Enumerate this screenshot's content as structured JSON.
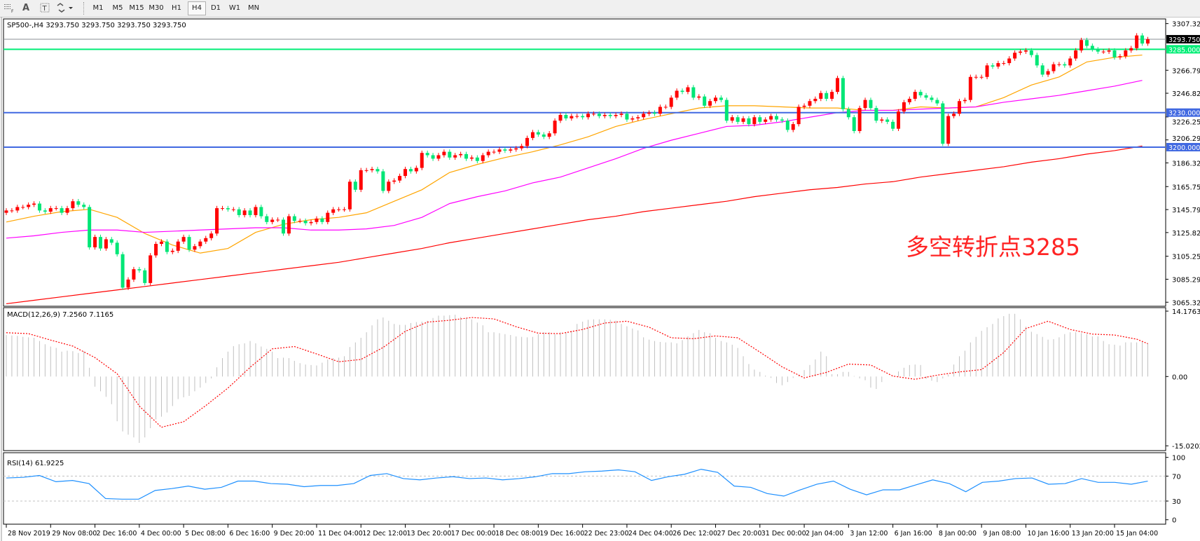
{
  "toolbar": {
    "icons": [
      "grid-icon",
      "text-icon",
      "text-label-icon",
      "shapes-icon"
    ],
    "text_tool_label": "A",
    "timeframes": [
      "M1",
      "M5",
      "M15",
      "M30",
      "H1",
      "H4",
      "D1",
      "W1",
      "MN"
    ],
    "active_timeframe": "H4"
  },
  "chart_header": "SP500-,H4  3293.750 3293.750 3293.750 3293.750",
  "macd_header": "MACD(12,26,9) 7.2560 7.1165",
  "rsi_header": "RSI(14) 61.9225",
  "annotation": "多空转折点3285",
  "colors": {
    "up": "#ff0000",
    "down": "#00e676",
    "ma_fast": "#ffa500",
    "ma_mid": "#ff00ff",
    "ma_slow": "#ff0000",
    "level_green": "#00ee76",
    "level_blue": "#4169e1",
    "rsi": "#1e90ff",
    "macd_hist": "#c0c0c0",
    "macd_signal": "#ff0000",
    "annotation": "#ff2424"
  },
  "chart_data": [
    {
      "type": "candlestick",
      "symbol": "SP500-",
      "timeframe": "H4",
      "ylim": [
        3065.325,
        3307.325
      ],
      "price_ticks": [
        "3307.325",
        "3266.790",
        "3246.825",
        "3226.255",
        "3206.290",
        "3186.325",
        "3165.755",
        "3145.790",
        "3125.825",
        "3105.255",
        "3085.290",
        "3065.325"
      ],
      "x_tick_labels": [
        "28 Nov 2019",
        "29 Nov 08:00",
        "2 Dec 16:00",
        "4 Dec 00:00",
        "5 Dec 08:00",
        "6 Dec 16:00",
        "9 Dec 20:00",
        "11 Dec 04:00",
        "12 Dec 12:00",
        "13 Dec 20:00",
        "17 Dec 00:00",
        "18 Dec 08:00",
        "19 Dec 16:00",
        "22 Dec 23:00",
        "24 Dec 04:00",
        "26 Dec 12:00",
        "27 Dec 20:00",
        "31 Dec 00:00",
        "2 Jan 04:00",
        "3 Jan 12:00",
        "6 Jan 16:00",
        "8 Jan 00:00",
        "9 Jan 08:00",
        "10 Jan 16:00",
        "13 Jan 20:00",
        "15 Jan 04:00"
      ],
      "first_open": 3143,
      "closes": [
        3145,
        3145,
        3148,
        3148,
        3150,
        3151,
        3145,
        3144,
        3147,
        3147,
        3143,
        3147,
        3153,
        3150,
        3148,
        3113,
        3122,
        3112,
        3120,
        3117,
        3107,
        3078,
        3085,
        3094,
        3093,
        3082,
        3106,
        3116,
        3118,
        3109,
        3110,
        3118,
        3122,
        3111,
        3114,
        3118,
        3121,
        3125,
        3147,
        3147,
        3146,
        3146,
        3141,
        3145,
        3141,
        3148,
        3140,
        3135,
        3137,
        3137,
        3125,
        3140,
        3136,
        3136,
        3134,
        3135,
        3138,
        3135,
        3143,
        3146,
        3146,
        3146,
        3170,
        3163,
        3180,
        3180,
        3181,
        3179,
        3162,
        3170,
        3171,
        3175,
        3181,
        3179,
        3182,
        3195,
        3193,
        3190,
        3193,
        3196,
        3191,
        3193,
        3194,
        3190,
        3191,
        3188,
        3193,
        3196,
        3196,
        3198,
        3197,
        3198,
        3199,
        3201,
        3208,
        3213,
        3211,
        3209,
        3212,
        3223,
        3228,
        3225,
        3227,
        3227,
        3226,
        3229,
        3229,
        3227,
        3228,
        3227,
        3228,
        3229,
        3224,
        3225,
        3226,
        3229,
        3230,
        3229,
        3235,
        3235,
        3243,
        3249,
        3248,
        3252,
        3243,
        3244,
        3236,
        3240,
        3243,
        3241,
        3223,
        3226,
        3222,
        3225,
        3220,
        3226,
        3222,
        3224,
        3227,
        3224,
        3223,
        3215,
        3220,
        3235,
        3236,
        3240,
        3242,
        3247,
        3242,
        3248,
        3260,
        3233,
        3226,
        3214,
        3234,
        3241,
        3234,
        3223,
        3224,
        3222,
        3216,
        3231,
        3239,
        3242,
        3248,
        3245,
        3243,
        3241,
        3238,
        3203,
        3227,
        3229,
        3240,
        3241,
        3261,
        3261,
        3261,
        3271,
        3270,
        3273,
        3273,
        3277,
        3282,
        3283,
        3284,
        3280,
        3271,
        3263,
        3266,
        3272,
        3272,
        3271,
        3277,
        3284,
        3293,
        3288,
        3285,
        3283,
        3283,
        3284,
        3278,
        3279,
        3284,
        3286,
        3297,
        3290,
        3293.75
      ],
      "moving_averages": [
        {
          "color": "#ffa500",
          "values": [
            3135,
            3140,
            3144,
            3146,
            3139,
            3125,
            3115,
            3108,
            3112,
            3126,
            3133,
            3137,
            3139,
            3143,
            3153,
            3163,
            3178,
            3185,
            3191,
            3196,
            3202,
            3209,
            3218,
            3224,
            3229,
            3234,
            3236,
            3236,
            3235,
            3234,
            3234,
            3232,
            3232,
            3235,
            3234,
            3235,
            3243,
            3254,
            3261,
            3274,
            3278,
            3280
          ]
        },
        {
          "color": "#ff00ff",
          "values": [
            3121,
            3123,
            3126,
            3128,
            3128,
            3126,
            3127,
            3128,
            3129,
            3130,
            3130,
            3128,
            3128,
            3129,
            3132,
            3139,
            3151,
            3157,
            3162,
            3169,
            3174,
            3182,
            3190,
            3199,
            3206,
            3212,
            3218,
            3219,
            3222,
            3226,
            3230,
            3232,
            3232,
            3233,
            3234,
            3235,
            3239,
            3242,
            3245,
            3249,
            3253,
            3258
          ]
        },
        {
          "color": "#ff0000",
          "values": [
            3064,
            3067,
            3070,
            3073,
            3076,
            3079,
            3082,
            3085,
            3088,
            3091,
            3094,
            3097,
            3100,
            3104,
            3108,
            3112,
            3117,
            3121,
            3125,
            3129,
            3133,
            3137,
            3140,
            3144,
            3147,
            3150,
            3153,
            3157,
            3160,
            3163,
            3165,
            3168,
            3170,
            3174,
            3177,
            3180,
            3183,
            3187,
            3190,
            3194,
            3197,
            3201
          ]
        }
      ],
      "levels": [
        {
          "value": 3293.75,
          "label": "3293.750",
          "kind": "bid"
        },
        {
          "value": 3285,
          "label": "3285.000",
          "kind": "green"
        },
        {
          "value": 3230,
          "label": "3230.000",
          "kind": "blue"
        },
        {
          "value": 3200,
          "label": "3200.000",
          "kind": "blue"
        }
      ]
    },
    {
      "type": "bar",
      "name": "MACD(12,26,9)",
      "ylim": [
        -15.0202,
        14.1763
      ],
      "ticks": [
        "14.1763",
        "0.00",
        "-15.0202"
      ],
      "histogram": [
        9.0,
        8.9,
        8.8,
        8.6,
        8.5,
        8.4,
        7.7,
        7.0,
        6.5,
        6.2,
        5.4,
        5.6,
        5.5,
        5.1,
        5.5,
        1.9,
        -2.2,
        -3.2,
        -4.4,
        -6.0,
        -9.7,
        -11.9,
        -12.6,
        -13.2,
        -14.4,
        -13.2,
        -11.2,
        -9.3,
        -8.7,
        -7.8,
        -6.4,
        -4.9,
        -4.5,
        -4.2,
        -3.2,
        -2.4,
        -1.4,
        -0.4,
        2.0,
        4.0,
        5.4,
        6.6,
        7.0,
        7.2,
        7.7,
        7.2,
        6.5,
        6.0,
        5.4,
        4.0,
        4.1,
        4.0,
        3.4,
        2.9,
        2.6,
        2.5,
        2.4,
        3.0,
        3.7,
        4.0,
        4.1,
        4.4,
        6.4,
        7.4,
        8.4,
        9.6,
        11.1,
        12.4,
        12.8,
        12.1,
        11.4,
        11.2,
        11.2,
        11.6,
        11.8,
        11.9,
        12.1,
        12.7,
        13.2,
        13.2,
        13.3,
        13.4,
        12.9,
        12.7,
        12.4,
        11.7,
        11.1,
        9.6,
        9.6,
        9.4,
        9.2,
        9.0,
        8.7,
        8.6,
        8.5,
        8.6,
        9.2,
        9.6,
        9.6,
        9.2,
        9.6,
        9.6,
        9.9,
        11.4,
        11.9,
        12.3,
        12.4,
        12.4,
        12.4,
        12.3,
        12.1,
        11.4,
        10.9,
        10.4,
        10.0,
        8.5,
        8.0,
        7.7,
        7.5,
        7.4,
        7.4,
        7.2,
        7.9,
        8.7,
        9.4,
        10.1,
        9.6,
        9.4,
        8.4,
        7.7,
        7.4,
        6.9,
        6.2,
        4.4,
        2.7,
        1.5,
        1.0,
        0.2,
        -0.3,
        -1.4,
        -1.9,
        -1.2,
        -0.3,
        0.4,
        1.4,
        2.5,
        3.7,
        5.4,
        4.4,
        0.5,
        0.5,
        1.0,
        1.0,
        0.1,
        -0.4,
        -0.8,
        -2.4,
        -2.7,
        -1.2,
        0,
        0.1,
        1.1,
        1.9,
        2.5,
        2.6,
        2.5,
        -0.5,
        -0.9,
        -1.2,
        -0.4,
        0.4,
        2.6,
        4.4,
        5.6,
        7.4,
        8.6,
        9.9,
        10.7,
        11.4,
        12.6,
        13.1,
        13.6,
        13.6,
        12.4,
        10.8,
        9.7,
        9.2,
        8.6,
        8.0,
        8.1,
        8.5,
        9.2,
        9.6,
        9.6,
        9.4,
        9.2,
        8.7,
        8.7,
        7.7,
        7.0,
        6.9,
        6.7,
        7.4,
        7.4,
        7.4,
        7.5,
        7.256
      ],
      "signal": [
        9.5,
        9.3,
        7.9,
        6.6,
        4.1,
        0.6,
        -6.4,
        -11.0,
        -9.8,
        -6.3,
        -2.5,
        2.0,
        6.0,
        6.5,
        4.9,
        3.2,
        3.7,
        6.3,
        9.8,
        11.8,
        12.2,
        12.8,
        12.5,
        10.8,
        9.4,
        9.3,
        10.2,
        11.6,
        12.0,
        10.7,
        8.4,
        8.2,
        8.8,
        8.4,
        5.3,
        2.1,
        -0.3,
        0.9,
        2.7,
        2.5,
        0.1,
        -0.6,
        0.3,
        1.0,
        1.5,
        5.2,
        10.4,
        12.0,
        10.2,
        9.2,
        9.0,
        8.1,
        7.1165
      ]
    },
    {
      "type": "line",
      "name": "RSI(14)",
      "ylim": [
        0,
        100
      ],
      "ticks": [
        "100",
        "70",
        "30",
        "0"
      ],
      "levels": [
        70,
        30
      ],
      "values": [
        67,
        68,
        71,
        61,
        63,
        58,
        34,
        33,
        33,
        47,
        50,
        54,
        49,
        52,
        62,
        62,
        58,
        57,
        53,
        55,
        55,
        58,
        71,
        74,
        66,
        64,
        67,
        69,
        66,
        67,
        64,
        66,
        69,
        74,
        74,
        77,
        78,
        80,
        77,
        63,
        69,
        73,
        81,
        76,
        54,
        52,
        42,
        38,
        48,
        57,
        62,
        49,
        40,
        48,
        48,
        56,
        64,
        58,
        45,
        60,
        62,
        66,
        67,
        57,
        58,
        66,
        60,
        60,
        57,
        61.9225
      ]
    }
  ]
}
